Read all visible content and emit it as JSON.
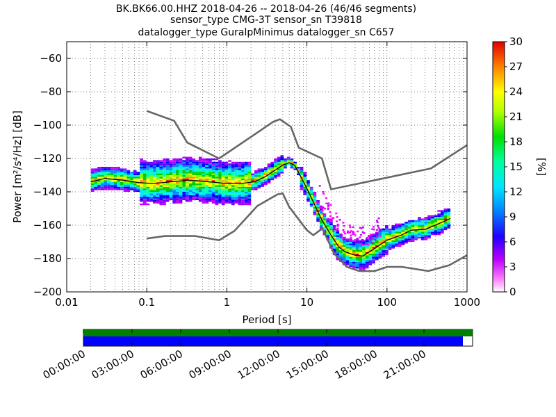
{
  "title": {
    "line1": "BK.BK66.00.HHZ   2018-04-26 -- 2018-04-26  (46/46 segments)",
    "line2": "sensor_type CMG-3T sensor_sn T39818",
    "line3": "datalogger_type GuralpMinimus datalogger_sn C657"
  },
  "colors": {
    "noise_model": "#666666",
    "mode_line": "#000000",
    "coverage_full": "#008000",
    "coverage_data": "#0000ff"
  },
  "chart_data": [
    {
      "type": "heatmap",
      "xlabel": "Period [s]",
      "ylabel": "Power [m²/s⁴/Hz] [dB]",
      "x_scale": "log",
      "xlim": [
        0.01,
        1000
      ],
      "ylim": [
        -200,
        -50
      ],
      "x_ticks": [
        0.01,
        0.1,
        1,
        10,
        100,
        1000
      ],
      "x_tick_labels": [
        "0.01",
        "0.1",
        "1",
        "10",
        "100",
        "1000"
      ],
      "y_ticks": [
        -60,
        -80,
        -100,
        -120,
        -140,
        -160,
        -180,
        -200
      ],
      "y_tick_labels": [
        "−60",
        "−80",
        "−100",
        "−120",
        "−140",
        "−160",
        "−180",
        "−200"
      ],
      "grid": true,
      "colorbar": {
        "label": "[%]",
        "range": [
          0,
          30
        ],
        "ticks": [
          0,
          3,
          6,
          9,
          12,
          15,
          18,
          21,
          24,
          27,
          30
        ],
        "tick_labels": [
          "0",
          "3",
          "6",
          "9",
          "12",
          "15",
          "18",
          "21",
          "24",
          "27",
          "30"
        ]
      },
      "series": [
        {
          "type": "line",
          "period": [
            0.1,
            0.22,
            0.32,
            0.8,
            3.8,
            4.6,
            6.3,
            7.9,
            15.4,
            20,
            354,
            1000
          ],
          "db": [
            -91.5,
            -97.4,
            -110.5,
            -120.0,
            -98.0,
            -96.5,
            -101.0,
            -113.5,
            -120.0,
            -138.5,
            -126.0,
            -112.0
          ]
        },
        {
          "type": "line",
          "period": [
            0.1,
            0.17,
            0.4,
            0.8,
            1.24,
            2.4,
            4.3,
            5.0,
            6.0,
            10.0,
            12.0,
            15.6,
            21.9,
            31.6,
            45.0,
            70.0,
            101.0,
            154.0,
            328.0,
            600.0,
            1000.0
          ],
          "db": [
            -168.0,
            -166.5,
            -166.5,
            -169.0,
            -163.5,
            -148.5,
            -141.5,
            -141.0,
            -149.0,
            -163.0,
            -166.0,
            -162.0,
            -177.0,
            -185.0,
            -187.5,
            -187.5,
            -185.0,
            -185.0,
            -187.5,
            -184.0,
            -178.0
          ]
        },
        {
          "type": "line",
          "period": [
            0.02,
            0.03,
            0.05,
            0.08,
            0.12,
            0.2,
            0.35,
            0.6,
            1.0,
            1.5,
            2.2,
            3.0,
            4.0,
            5.0,
            6.0,
            7.0,
            8.0,
            10.0,
            12.0,
            15.0,
            20.0,
            25.0,
            30.0,
            40.0,
            50.0,
            70.0,
            100.0,
            150.0,
            200.0,
            300.0,
            500.0,
            620.0
          ],
          "db": [
            -134.0,
            -132.0,
            -133.0,
            -134.5,
            -135.0,
            -134.0,
            -133.0,
            -134.0,
            -135.0,
            -135.0,
            -134.0,
            -131.0,
            -127.0,
            -124.0,
            -122.5,
            -124.0,
            -129.0,
            -138.0,
            -146.0,
            -156.0,
            -166.0,
            -173.0,
            -176.0,
            -178.0,
            -178.5,
            -174.0,
            -169.0,
            -166.0,
            -163.0,
            -162.5,
            -158.0,
            -156.0
          ]
        }
      ]
    },
    {
      "type": "bar",
      "x_tick_labels": [
        "00:00:00",
        "03:00:00",
        "06:00:00",
        "09:00:00",
        "12:00:00",
        "15:00:00",
        "18:00:00",
        "21:00:00"
      ],
      "hours": [
        0,
        3,
        6,
        9,
        12,
        15,
        18,
        21
      ],
      "xlim": [
        0,
        24
      ],
      "series": [
        {
          "start_hour": 0,
          "end_hour": 24,
          "color": "#008000"
        },
        {
          "start_hour": 0,
          "end_hour": 23.4,
          "color": "#0000ff"
        }
      ]
    }
  ]
}
